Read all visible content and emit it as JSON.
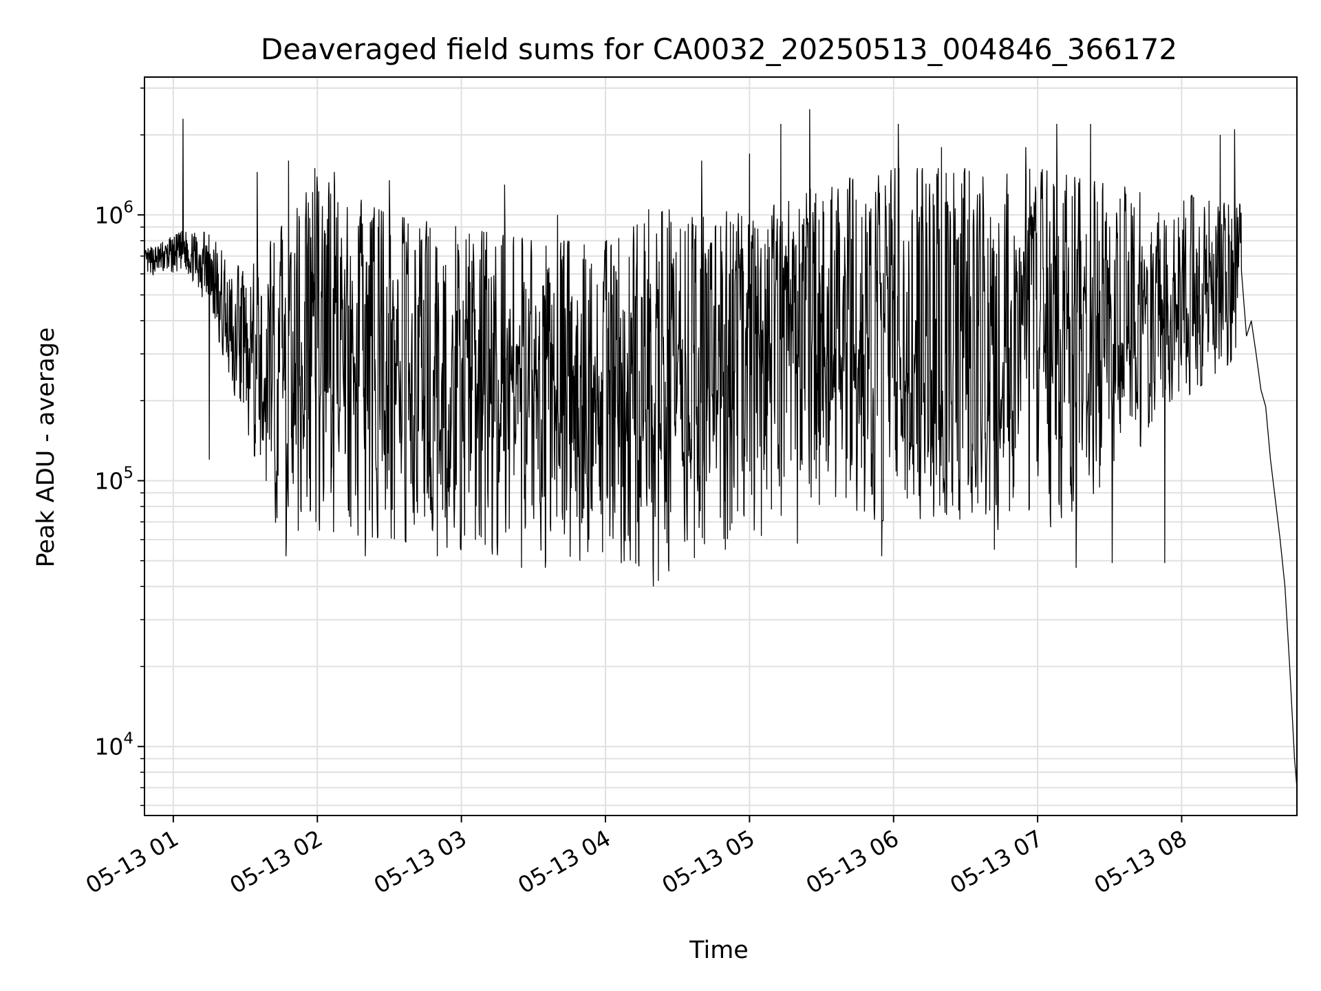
{
  "chart_data": {
    "type": "line",
    "title": "Deaveraged field sums for CA0032_20250513_004846_366172",
    "xlabel": "Time",
    "ylabel": "Peak ADU - average",
    "y_scale": "log",
    "grid": true,
    "line_color": "#000000",
    "grid_color": "#e0e0e0",
    "xlim": [
      "2025-05-13 00:48",
      "2025-05-13 08:48"
    ],
    "ylim": [
      5500,
      3300000
    ],
    "x_ticks": [
      {
        "value": "2025-05-13 01:00",
        "label": "05-13 01"
      },
      {
        "value": "2025-05-13 02:00",
        "label": "05-13 02"
      },
      {
        "value": "2025-05-13 03:00",
        "label": "05-13 03"
      },
      {
        "value": "2025-05-13 04:00",
        "label": "05-13 04"
      },
      {
        "value": "2025-05-13 05:00",
        "label": "05-13 05"
      },
      {
        "value": "2025-05-13 06:00",
        "label": "05-13 06"
      },
      {
        "value": "2025-05-13 07:00",
        "label": "05-13 07"
      },
      {
        "value": "2025-05-13 08:00",
        "label": "05-13 08"
      }
    ],
    "y_ticks": [
      {
        "value": 10000,
        "base": "10",
        "exp": "4"
      },
      {
        "value": 100000,
        "base": "10",
        "exp": "5"
      },
      {
        "value": 1000000,
        "base": "10",
        "exp": "6"
      }
    ],
    "series": [
      {
        "envelope_hourly": [
          {
            "t": "2025-05-13 00:48",
            "low": 580000,
            "high": 750000
          },
          {
            "t": "2025-05-13 01:05",
            "low": 600000,
            "high": 900000
          },
          {
            "t": "2025-05-13 01:15",
            "low": 450000,
            "high": 850000
          },
          {
            "t": "2025-05-13 01:30",
            "low": 150000,
            "high": 600000
          },
          {
            "t": "2025-05-13 01:45",
            "low": 60000,
            "high": 900000
          },
          {
            "t": "2025-05-13 02:00",
            "low": 65000,
            "high": 1400000
          },
          {
            "t": "2025-05-13 02:30",
            "low": 60000,
            "high": 1000000
          },
          {
            "t": "2025-05-13 03:00",
            "low": 55000,
            "high": 900000
          },
          {
            "t": "2025-05-13 03:30",
            "low": 50000,
            "high": 800000
          },
          {
            "t": "2025-05-13 04:00",
            "low": 50000,
            "high": 800000
          },
          {
            "t": "2025-05-13 04:30",
            "low": 45000,
            "high": 1100000
          },
          {
            "t": "2025-05-13 05:00",
            "low": 60000,
            "high": 1000000
          },
          {
            "t": "2025-05-13 05:30",
            "low": 75000,
            "high": 1300000
          },
          {
            "t": "2025-05-13 06:00",
            "low": 70000,
            "high": 1500000
          },
          {
            "t": "2025-05-13 06:30",
            "low": 70000,
            "high": 1500000
          },
          {
            "t": "2025-05-13 07:00",
            "low": 60000,
            "high": 1500000
          },
          {
            "t": "2025-05-13 07:30",
            "low": 100000,
            "high": 1300000
          },
          {
            "t": "2025-05-13 08:00",
            "low": 200000,
            "high": 1200000
          },
          {
            "t": "2025-05-13 08:25",
            "low": 300000,
            "high": 1100000
          }
        ],
        "spikes": [
          {
            "t": "2025-05-13 01:04",
            "y": 2300000
          },
          {
            "t": "2025-05-13 01:35",
            "y": 1450000
          },
          {
            "t": "2025-05-13 01:48",
            "y": 1600000
          },
          {
            "t": "2025-05-13 01:59",
            "y": 1500000
          },
          {
            "t": "2025-05-13 02:07",
            "y": 1450000
          },
          {
            "t": "2025-05-13 02:30",
            "y": 1350000
          },
          {
            "t": "2025-05-13 03:18",
            "y": 1300000
          },
          {
            "t": "2025-05-13 03:40",
            "y": 1000000
          },
          {
            "t": "2025-05-13 04:18",
            "y": 1050000
          },
          {
            "t": "2025-05-13 04:40",
            "y": 1600000
          },
          {
            "t": "2025-05-13 05:00",
            "y": 1700000
          },
          {
            "t": "2025-05-13 05:13",
            "y": 2200000
          },
          {
            "t": "2025-05-13 05:25",
            "y": 2500000
          },
          {
            "t": "2025-05-13 06:02",
            "y": 2200000
          },
          {
            "t": "2025-05-13 06:20",
            "y": 1800000
          },
          {
            "t": "2025-05-13 06:55",
            "y": 1800000
          },
          {
            "t": "2025-05-13 07:08",
            "y": 2200000
          },
          {
            "t": "2025-05-13 07:22",
            "y": 2200000
          },
          {
            "t": "2025-05-13 08:16",
            "y": 2000000
          },
          {
            "t": "2025-05-13 08:22",
            "y": 2100000
          }
        ],
        "dips": [
          {
            "t": "2025-05-13 01:15",
            "y": 120000
          },
          {
            "t": "2025-05-13 01:47",
            "y": 52000
          },
          {
            "t": "2025-05-13 02:20",
            "y": 52000
          },
          {
            "t": "2025-05-13 02:50",
            "y": 52000
          },
          {
            "t": "2025-05-13 03:25",
            "y": 47000
          },
          {
            "t": "2025-05-13 03:35",
            "y": 47000
          },
          {
            "t": "2025-05-13 04:20",
            "y": 40000
          },
          {
            "t": "2025-05-13 04:22",
            "y": 42000
          },
          {
            "t": "2025-05-13 04:50",
            "y": 55000
          },
          {
            "t": "2025-05-13 05:05",
            "y": 62000
          },
          {
            "t": "2025-05-13 05:20",
            "y": 58000
          },
          {
            "t": "2025-05-13 05:55",
            "y": 52000
          },
          {
            "t": "2025-05-13 06:42",
            "y": 55000
          },
          {
            "t": "2025-05-13 07:16",
            "y": 47000
          },
          {
            "t": "2025-05-13 07:31",
            "y": 49000
          },
          {
            "t": "2025-05-13 07:53",
            "y": 49000
          }
        ],
        "tail": [
          {
            "t": "2025-05-13 08:25",
            "y": 600000
          },
          {
            "t": "2025-05-13 08:27",
            "y": 350000
          },
          {
            "t": "2025-05-13 08:29",
            "y": 400000
          },
          {
            "t": "2025-05-13 08:31",
            "y": 300000
          },
          {
            "t": "2025-05-13 08:33",
            "y": 220000
          },
          {
            "t": "2025-05-13 08:35",
            "y": 190000
          },
          {
            "t": "2025-05-13 08:37",
            "y": 120000
          },
          {
            "t": "2025-05-13 08:39",
            "y": 85000
          },
          {
            "t": "2025-05-13 08:41",
            "y": 60000
          },
          {
            "t": "2025-05-13 08:43",
            "y": 40000
          },
          {
            "t": "2025-05-13 08:45",
            "y": 20000
          },
          {
            "t": "2025-05-13 08:47",
            "y": 9000
          },
          {
            "t": "2025-05-13 08:48",
            "y": 7000
          }
        ]
      }
    ]
  }
}
